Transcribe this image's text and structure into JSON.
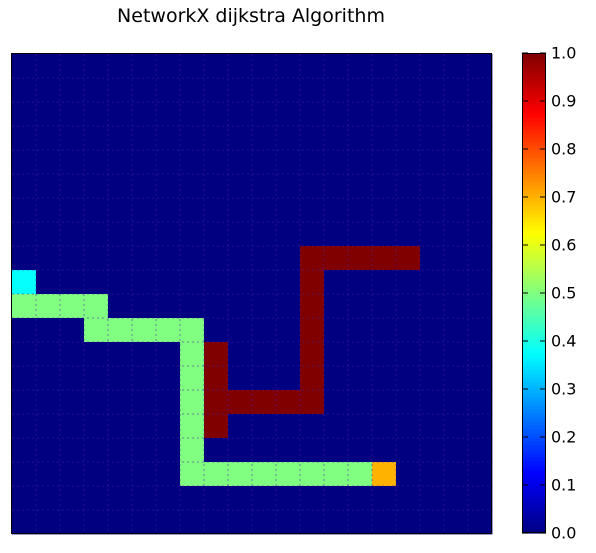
{
  "chart_data": {
    "type": "heatmap",
    "title": "NetworkX dijkstra Algorithm",
    "rows": 20,
    "cols": 20,
    "background_value": 0.0,
    "grid": true,
    "colormap": "jet",
    "colorbar": {
      "range": [
        0.0,
        1.0
      ],
      "ticks": [
        "0.0",
        "0.1",
        "0.2",
        "0.3",
        "0.4",
        "0.5",
        "0.6",
        "0.7",
        "0.8",
        "0.9",
        "1.0"
      ]
    },
    "cells": [
      {
        "row": 8,
        "cols": [
          12,
          13,
          14,
          15,
          16
        ],
        "value": 1.0
      },
      {
        "row": 9,
        "cols": [
          12
        ],
        "value": 1.0
      },
      {
        "row": 10,
        "cols": [
          12
        ],
        "value": 1.0
      },
      {
        "row": 11,
        "cols": [
          12
        ],
        "value": 1.0
      },
      {
        "row": 12,
        "cols": [
          12
        ],
        "value": 1.0
      },
      {
        "row": 13,
        "cols": [
          12
        ],
        "value": 1.0
      },
      {
        "row": 14,
        "cols": [
          8,
          9,
          10,
          11,
          12
        ],
        "value": 1.0
      },
      {
        "row": 12,
        "cols": [
          8
        ],
        "value": 1.0
      },
      {
        "row": 13,
        "cols": [
          8
        ],
        "value": 1.0
      },
      {
        "row": 14,
        "cols": [
          8
        ],
        "value": 1.0
      },
      {
        "row": 15,
        "cols": [
          8
        ],
        "value": 1.0
      },
      {
        "row": 9,
        "cols": [
          0
        ],
        "value": 0.38
      },
      {
        "row": 10,
        "cols": [
          0,
          1,
          2,
          3
        ],
        "value": 0.5
      },
      {
        "row": 11,
        "cols": [
          3,
          4,
          5,
          6,
          7
        ],
        "value": 0.5
      },
      {
        "row": 12,
        "cols": [
          7
        ],
        "value": 0.5
      },
      {
        "row": 13,
        "cols": [
          7
        ],
        "value": 0.5
      },
      {
        "row": 14,
        "cols": [
          7
        ],
        "value": 0.5
      },
      {
        "row": 15,
        "cols": [
          7
        ],
        "value": 0.5
      },
      {
        "row": 16,
        "cols": [
          7
        ],
        "value": 0.5
      },
      {
        "row": 17,
        "cols": [
          7,
          8,
          9,
          10,
          11,
          12,
          13,
          14
        ],
        "value": 0.5
      },
      {
        "row": 17,
        "cols": [
          15
        ],
        "value": 0.7
      }
    ]
  }
}
